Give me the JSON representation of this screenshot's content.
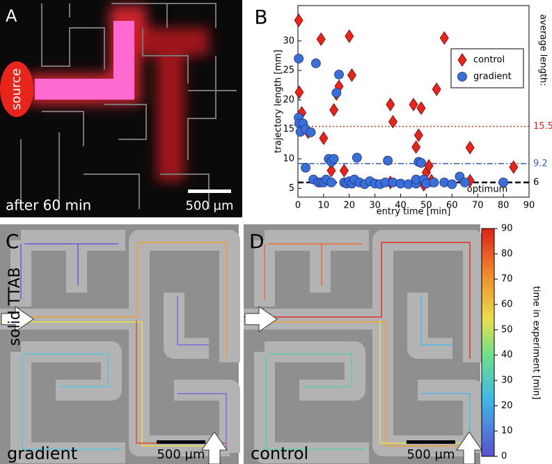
{
  "panels": {
    "A": {
      "letter": "A",
      "source": "source",
      "caption": "after 60 min",
      "scale": "500 µm"
    },
    "C": {
      "letter": "C",
      "side": "solid TTAB",
      "caption": "gradient",
      "scale": "500 µm"
    },
    "D": {
      "letter": "D",
      "caption": "control",
      "scale": "500 µm"
    }
  },
  "chart_data": {
    "type": "scatter",
    "letter": "B",
    "xlabel": "entry time [min]",
    "ylabel": "trajectory length [mm]",
    "y2label": "average length:",
    "xlim": [
      0,
      90
    ],
    "ylim": [
      3.5,
      36
    ],
    "xticks": [
      0,
      10,
      20,
      30,
      40,
      50,
      60,
      70,
      80,
      90
    ],
    "yticks": [
      5,
      10,
      15,
      20,
      25,
      30
    ],
    "legend": "upper right",
    "series": [
      {
        "name": "control",
        "color": "#e8251b",
        "marker": "diamond",
        "x": [
          0.3,
          0.5,
          1.5,
          4,
          9,
          10,
          13,
          14,
          15,
          16,
          18,
          20,
          21,
          36,
          37,
          36,
          45,
          46,
          47,
          48,
          49,
          50,
          51,
          52,
          54,
          57,
          67,
          67,
          84
        ],
        "values": [
          33.5,
          21.3,
          17.8,
          14.5,
          30.3,
          13.5,
          8,
          18.3,
          21,
          22.3,
          8,
          30.8,
          24.2,
          19.2,
          16.3,
          6,
          19.2,
          12,
          14,
          18.6,
          5.6,
          7.7,
          8.8,
          6.3,
          21.8,
          30.5,
          11.9,
          6.3,
          8.6
        ]
      },
      {
        "name": "gradient",
        "color": "#3a6fd8",
        "marker": "circle",
        "x": [
          0.3,
          0.3,
          0.5,
          1,
          2,
          3,
          3,
          5,
          6,
          7,
          8,
          9,
          10,
          11,
          12,
          13,
          13,
          14,
          15,
          16,
          18,
          19,
          20,
          21,
          22,
          23,
          24,
          26,
          28,
          30,
          32,
          34,
          35,
          37,
          40,
          43,
          46,
          46,
          47,
          48,
          49,
          50,
          53,
          57,
          60,
          63,
          65,
          80
        ],
        "values": [
          27,
          17,
          16,
          14.6,
          16,
          15,
          8.5,
          14.5,
          6.5,
          26.2,
          6,
          6,
          6,
          6.5,
          10,
          9.5,
          6,
          10,
          21.2,
          24.3,
          6,
          5.8,
          6.2,
          5.8,
          6.5,
          10.2,
          6,
          5.7,
          6.2,
          5.8,
          5.7,
          6,
          9.7,
          6,
          5.8,
          5.7,
          5.8,
          6.5,
          9.5,
          9.3,
          6.5,
          5.8,
          6,
          6,
          5.7,
          7,
          6,
          6
        ]
      }
    ],
    "reference_lines": [
      {
        "value": 15.5,
        "color": "#e8251b",
        "style": "dotted"
      },
      {
        "value": 9.2,
        "color": "#3a5bbf",
        "style": "dashdot"
      },
      {
        "value": 6,
        "color": "#000000",
        "style": "dashed",
        "label": "optimum"
      }
    ]
  },
  "colorbar": {
    "label": "time in experiment [min]",
    "lim": [
      0,
      90
    ],
    "ticks": [
      0,
      10,
      20,
      30,
      40,
      50,
      60,
      70,
      80,
      90
    ]
  }
}
